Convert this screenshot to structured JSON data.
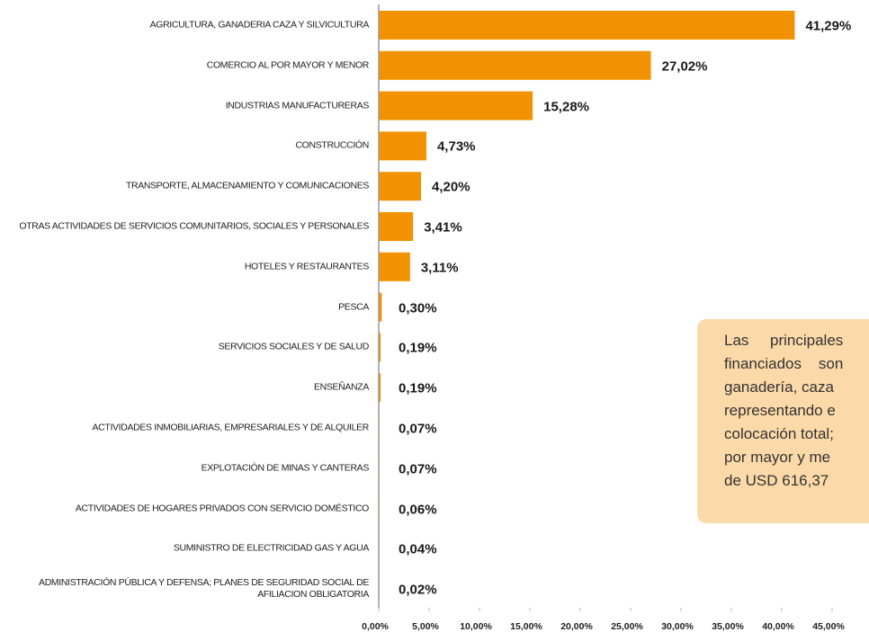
{
  "chart_data": {
    "type": "hbar",
    "categories": [
      "AGRICULTURA, GANADERIA CAZA Y SILVICULTURA",
      "COMERCIO AL POR MAYOR Y MENOR",
      "INDUSTRIAS MANUFACTURERAS",
      "CONSTRUCCIÓN",
      "TRANSPORTE, ALMACENAMIENTO Y COMUNICACIONES",
      "OTRAS ACTIVIDADES DE SERVICIOS COMUNITARIOS, SOCIALES Y PERSONALES",
      "HOTELES Y RESTAURANTES",
      "PESCA",
      "SERVICIOS SOCIALES Y DE SALUD",
      "ENSEÑANZA",
      "ACTIVIDADES INMOBILIARIAS, EMPRESARIALES Y DE ALQUILER",
      "EXPLOTACIÓN DE MINAS Y CANTERAS",
      "ACTIVIDADES DE HOGARES PRIVADOS CON SERVICIO DOMÉSTICO",
      "SUMINISTRO DE ELECTRICIDAD GAS Y AGUA",
      "ADMINISTRACIÓN PÚBLICA Y DEFENSA; PLANES DE SEGURIDAD SOCIAL DE AFILIACION OBLIGATORIA"
    ],
    "values": [
      41.29,
      27.02,
      15.28,
      4.73,
      4.2,
      3.41,
      3.11,
      0.3,
      0.19,
      0.19,
      0.07,
      0.07,
      0.06,
      0.04,
      0.02
    ],
    "value_labels": [
      "41,29%",
      "27,02%",
      "15,28%",
      "4,73%",
      "4,20%",
      "3,41%",
      "3,11%",
      "0,30%",
      "0,19%",
      "0,19%",
      "0,07%",
      "0,07%",
      "0,06%",
      "0,04%",
      "0,02%"
    ],
    "color": "#f39200",
    "xlim": [
      0,
      45
    ],
    "xticks": [
      {
        "value": 0,
        "label": "0,00%"
      },
      {
        "value": 5,
        "label": "5,00%"
      },
      {
        "value": 10,
        "label": "10,00%"
      },
      {
        "value": 15,
        "label": "15,00%"
      },
      {
        "value": 20,
        "label": "20,00%"
      },
      {
        "value": 25,
        "label": "25,00%"
      },
      {
        "value": 30,
        "label": "30,00%"
      },
      {
        "value": 35,
        "label": "35,00%"
      },
      {
        "value": 40,
        "label": "40,00%"
      },
      {
        "value": 45,
        "label": "45,00%"
      }
    ],
    "annotation": {
      "lines": [
        "Las     principales",
        "financiados    son",
        "ganadería, caza",
        "representando e",
        "colocación total;",
        "por mayor y me",
        "de USD 616,37"
      ]
    }
  }
}
